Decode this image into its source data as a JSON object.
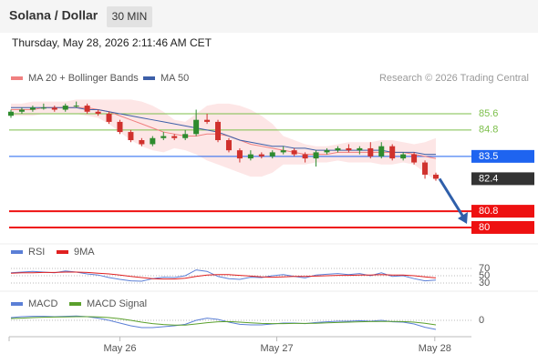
{
  "header": {
    "title": "Solana / Dollar",
    "interval": "30 MIN",
    "timestamp": "Thursday, May 28, 2026 2:11:46 AM CET",
    "source": "Research © 2026 Trading Central"
  },
  "chart_data": [
    {
      "type": "candlestick",
      "xlim": [
        0,
        39
      ],
      "xticks": [
        {
          "value": 10,
          "label": "May 26"
        },
        {
          "value": 24.4,
          "label": "May 27"
        },
        {
          "value": 38.9,
          "label": "May 28"
        }
      ],
      "ylim": [
        79.46,
        86.72
      ],
      "up_color": "#2e8b2e",
      "down_color": "#d0312d",
      "open": [
        85.5,
        85.7,
        85.8,
        85.9,
        85.9,
        85.8,
        86.0,
        86.0,
        85.7,
        85.6,
        85.2,
        84.7,
        84.3,
        84.1,
        84.4,
        84.5,
        84.4,
        84.6,
        85.3,
        85.2,
        84.3,
        83.8,
        83.4,
        83.6,
        83.5,
        83.7,
        83.8,
        83.6,
        83.4,
        83.7,
        83.8,
        83.9,
        83.8,
        83.9,
        83.5,
        84.0,
        83.4,
        83.6,
        83.2,
        82.6
      ],
      "high": [
        85.8,
        85.9,
        86.0,
        86.1,
        86.0,
        86.1,
        86.2,
        86.1,
        85.8,
        85.7,
        85.3,
        84.8,
        84.4,
        84.5,
        84.7,
        84.6,
        84.8,
        85.8,
        85.6,
        85.3,
        84.4,
        83.9,
        83.8,
        83.7,
        83.8,
        84.0,
        83.9,
        83.7,
        83.8,
        83.9,
        84.0,
        84.1,
        84.0,
        84.2,
        84.2,
        84.1,
        83.7,
        83.7,
        83.3,
        82.7
      ],
      "low": [
        85.4,
        85.6,
        85.7,
        85.8,
        85.7,
        85.7,
        85.9,
        85.6,
        85.5,
        85.1,
        84.6,
        84.2,
        84.0,
        84.0,
        84.3,
        84.3,
        84.3,
        84.5,
        85.1,
        84.2,
        83.7,
        83.2,
        83.3,
        83.4,
        83.4,
        83.6,
        83.5,
        83.2,
        83.0,
        83.6,
        83.7,
        83.7,
        83.6,
        83.4,
        83.4,
        83.3,
        83.3,
        83.1,
        82.4,
        82.3
      ],
      "close": [
        85.7,
        85.8,
        85.9,
        85.9,
        85.8,
        86.0,
        86.0,
        85.7,
        85.6,
        85.2,
        84.7,
        84.3,
        84.1,
        84.4,
        84.5,
        84.4,
        84.6,
        85.3,
        85.2,
        84.3,
        83.8,
        83.4,
        83.6,
        83.5,
        83.7,
        83.8,
        83.6,
        83.4,
        83.7,
        83.8,
        83.9,
        83.8,
        83.9,
        83.5,
        84.0,
        83.4,
        83.6,
        83.2,
        82.6,
        82.4
      ],
      "series": [
        {
          "name": "MA 20 + Bollinger Bands",
          "color": "#f08080",
          "band_color": "#fde0e0",
          "values": [
            85.8,
            85.8,
            85.8,
            85.9,
            85.9,
            85.9,
            85.9,
            85.9,
            85.8,
            85.7,
            85.5,
            85.3,
            85.1,
            84.9,
            84.7,
            84.6,
            84.5,
            84.5,
            84.6,
            84.6,
            84.5,
            84.3,
            84.1,
            84.0,
            83.9,
            83.8,
            83.7,
            83.6,
            83.6,
            83.6,
            83.7,
            83.7,
            83.7,
            83.7,
            83.7,
            83.7,
            83.7,
            83.6,
            83.5,
            83.4
          ],
          "upper": [
            86.1,
            86.1,
            86.2,
            86.2,
            86.2,
            86.2,
            86.3,
            86.3,
            86.3,
            86.3,
            86.3,
            86.3,
            86.2,
            86.0,
            85.7,
            85.3,
            85.2,
            85.6,
            86.0,
            86.1,
            86.1,
            86.0,
            85.8,
            85.5,
            85.1,
            84.5,
            84.3,
            84.1,
            84.0,
            84.0,
            84.1,
            84.2,
            84.2,
            84.2,
            84.3,
            84.3,
            84.2,
            84.1,
            84.2,
            84.4
          ],
          "lower": [
            85.5,
            85.5,
            85.5,
            85.6,
            85.6,
            85.6,
            85.6,
            85.5,
            85.4,
            85.1,
            84.7,
            84.3,
            84.0,
            83.8,
            83.7,
            83.9,
            83.8,
            83.6,
            83.3,
            83.1,
            82.9,
            82.7,
            82.5,
            82.5,
            82.7,
            83.1,
            83.1,
            83.1,
            83.2,
            83.2,
            83.3,
            83.2,
            83.2,
            83.2,
            83.1,
            83.1,
            83.2,
            83.1,
            82.7,
            82.3
          ]
        },
        {
          "name": "MA 50",
          "color": "#3d5fa8",
          "values": [
            85.9,
            85.9,
            85.9,
            85.9,
            85.9,
            85.9,
            85.9,
            85.8,
            85.8,
            85.7,
            85.6,
            85.5,
            85.4,
            85.3,
            85.2,
            85.1,
            85.0,
            84.9,
            84.8,
            84.7,
            84.5,
            84.3,
            84.2,
            84.1,
            84.0,
            84.0,
            83.9,
            83.9,
            83.8,
            83.8,
            83.8,
            83.8,
            83.8,
            83.8,
            83.8,
            83.7,
            83.7,
            83.7,
            83.6,
            83.6
          ]
        }
      ],
      "levels": [
        {
          "value": 85.6,
          "color": "#7cbf4a",
          "line": true,
          "box": false,
          "width": 1
        },
        {
          "value": 84.8,
          "color": "#7cbf4a",
          "line": true,
          "box": false,
          "width": 1
        },
        {
          "value": 83.5,
          "color": "#1e64f0",
          "line": true,
          "box": true,
          "width": 1
        },
        {
          "value": 82.4,
          "color": "#333333",
          "line": false,
          "box": true,
          "width": 1
        },
        {
          "value": 80.8,
          "color": "#ee1111",
          "line": true,
          "box": true,
          "width": 2
        },
        {
          "value": 80.0,
          "color": "#ee1111",
          "line": true,
          "box": true,
          "width": 2
        }
      ],
      "arrow_color": "#2f5faa"
    },
    {
      "type": "line",
      "ylim": [
        7.5,
        95
      ],
      "yticks": [
        70,
        50,
        30
      ],
      "series": [
        {
          "name": "RSI",
          "color": "#5b7fd6",
          "values": [
            58,
            60,
            62,
            60,
            58,
            63,
            60,
            55,
            52,
            45,
            40,
            36,
            35,
            42,
            46,
            45,
            50,
            66,
            62,
            48,
            42,
            40,
            46,
            45,
            50,
            53,
            48,
            44,
            52,
            54,
            56,
            53,
            56,
            50,
            58,
            48,
            50,
            42,
            36,
            38
          ]
        },
        {
          "name": "9MA",
          "color": "#e02020",
          "values": [
            57,
            58,
            58,
            59,
            59,
            60,
            60,
            59,
            57,
            55,
            52,
            48,
            45,
            42,
            41,
            41,
            43,
            48,
            52,
            53,
            53,
            51,
            49,
            47,
            46,
            47,
            48,
            48,
            49,
            50,
            51,
            51,
            52,
            52,
            53,
            52,
            52,
            50,
            47,
            44
          ]
        }
      ]
    },
    {
      "type": "line",
      "ylim": [
        -0.8,
        0.6
      ],
      "yticks": [
        0
      ],
      "series": [
        {
          "name": "MACD",
          "color": "#5b7fd6",
          "values": [
            0.15,
            0.2,
            0.22,
            0.22,
            0.2,
            0.22,
            0.24,
            0.2,
            0.12,
            0.0,
            -0.15,
            -0.3,
            -0.4,
            -0.4,
            -0.35,
            -0.3,
            -0.22,
            0.0,
            0.12,
            0.05,
            -0.1,
            -0.22,
            -0.25,
            -0.25,
            -0.2,
            -0.15,
            -0.15,
            -0.18,
            -0.12,
            -0.08,
            -0.05,
            -0.05,
            -0.02,
            -0.05,
            0.0,
            -0.08,
            -0.1,
            -0.2,
            -0.38,
            -0.5
          ]
        },
        {
          "name": "MACD Signal",
          "color": "#5aa02c",
          "values": [
            0.1,
            0.12,
            0.15,
            0.17,
            0.18,
            0.19,
            0.2,
            0.2,
            0.19,
            0.15,
            0.09,
            0.0,
            -0.1,
            -0.18,
            -0.23,
            -0.26,
            -0.26,
            -0.2,
            -0.13,
            -0.08,
            -0.07,
            -0.1,
            -0.14,
            -0.17,
            -0.18,
            -0.18,
            -0.17,
            -0.17,
            -0.16,
            -0.14,
            -0.12,
            -0.1,
            -0.08,
            -0.07,
            -0.06,
            -0.06,
            -0.07,
            -0.1,
            -0.16,
            -0.25
          ]
        }
      ]
    }
  ]
}
